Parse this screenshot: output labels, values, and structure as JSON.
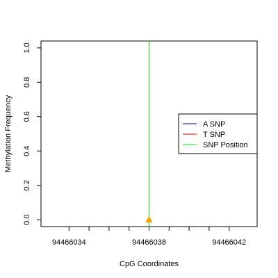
{
  "chart_data": {
    "type": "scatter",
    "xlabel": "CpG Coordinates",
    "ylabel": "Methylation Frequency",
    "xlim": [
      94466032.6,
      94466043.4
    ],
    "ylim": [
      -0.04,
      1.04
    ],
    "x_ticks": [
      94466034,
      94466035,
      94466036,
      94466037,
      94466038,
      94466039,
      94466040,
      94466041,
      94466042
    ],
    "x_tick_labels": [
      {
        "value": 94466034,
        "text": "94466034"
      },
      {
        "value": 94466038,
        "text": "94466038"
      },
      {
        "value": 94466042,
        "text": "94466042"
      }
    ],
    "y_ticks": [
      {
        "value": 0.0,
        "text": "0.0"
      },
      {
        "value": 0.2,
        "text": "0.2"
      },
      {
        "value": 0.4,
        "text": "0.4"
      },
      {
        "value": 0.6,
        "text": "0.6"
      },
      {
        "value": 0.8,
        "text": "0.8"
      },
      {
        "value": 1.0,
        "text": "1.0"
      }
    ],
    "snp_position": {
      "x": 94466038,
      "color": "#00ee00"
    },
    "points": [
      {
        "x": 94466038,
        "y": 0.0,
        "shape": "triangle",
        "color": "#f4a300"
      }
    ],
    "series": [
      {
        "name": "A SNP",
        "color": "#000080",
        "values": []
      },
      {
        "name": "T SNP",
        "color": "#cc0000",
        "values": []
      }
    ],
    "legend": {
      "placement": "right",
      "entries": [
        {
          "label": "A SNP",
          "color": "#000080"
        },
        {
          "label": "T SNP",
          "color": "#cc0000"
        },
        {
          "label": "SNP Position",
          "color": "#00ee00"
        }
      ]
    },
    "grid": false
  }
}
